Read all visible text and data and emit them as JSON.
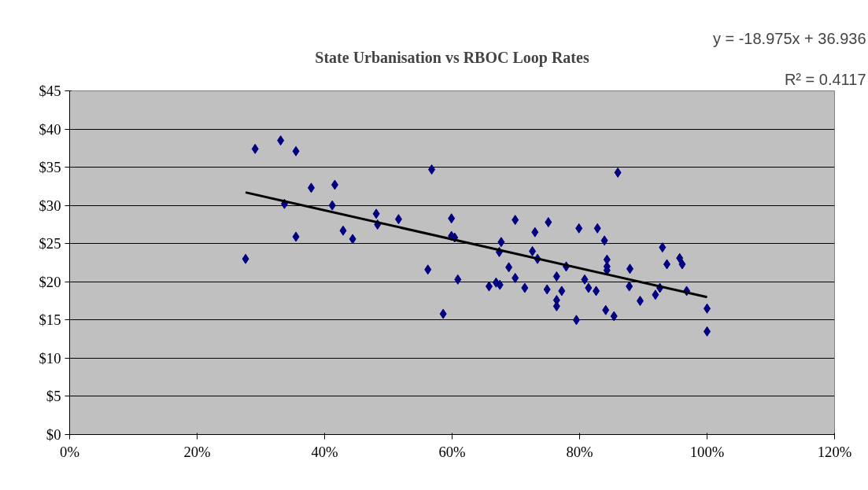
{
  "chart_data": {
    "type": "scatter",
    "title": "State Urbanisation vs RBOC Loop Rates",
    "annotations": [
      "y = -18.975x + 36.936",
      "R² = 0.4117"
    ],
    "xlim": [
      0,
      120
    ],
    "ylim": [
      0,
      45
    ],
    "xticks": [
      {
        "value": 0,
        "label": "0%"
      },
      {
        "value": 20,
        "label": "20%"
      },
      {
        "value": 40,
        "label": "40%"
      },
      {
        "value": 60,
        "label": "60%"
      },
      {
        "value": 80,
        "label": "80%"
      },
      {
        "value": 100,
        "label": "100%"
      },
      {
        "value": 120,
        "label": "120%"
      }
    ],
    "yticks": [
      {
        "value": 0,
        "label": "$0"
      },
      {
        "value": 5,
        "label": "$5"
      },
      {
        "value": 10,
        "label": "$10"
      },
      {
        "value": 15,
        "label": "$15"
      },
      {
        "value": 20,
        "label": "$20"
      },
      {
        "value": 25,
        "label": "$25"
      },
      {
        "value": 30,
        "label": "$30"
      },
      {
        "value": 35,
        "label": "$35"
      },
      {
        "value": 40,
        "label": "$40"
      },
      {
        "value": 45,
        "label": "$45"
      }
    ],
    "grid": "y",
    "marker": "diamond",
    "series": [
      {
        "color": "#000080",
        "x": [
          27.6,
          29.1,
          33.1,
          35.5,
          37.9,
          41.6,
          33.7,
          41.2,
          35.5,
          42.9,
          44.4,
          48.1,
          48.3,
          51.6,
          56.8,
          56.2,
          58.6,
          59.9,
          59.9,
          60.4,
          60.9,
          65.8,
          66.9,
          67.5,
          67.7,
          67.4,
          68.9,
          69.9,
          69.9,
          71.4,
          72.6,
          73.4,
          73.0,
          75.1,
          74.9,
          76.4,
          77.2,
          76.4,
          76.4,
          77.9,
          79.9,
          79.5,
          80.8,
          81.4,
          82.6,
          82.8,
          83.9,
          84.3,
          84.3,
          84.3,
          84.1,
          85.4,
          86.0,
          87.8,
          87.9,
          89.5,
          91.9,
          92.6,
          93.0,
          93.7,
          95.7,
          96.1,
          96.8,
          100,
          100
        ],
        "values": [
          23.0,
          37.4,
          38.5,
          37.1,
          32.3,
          32.7,
          30.2,
          30.0,
          25.9,
          26.7,
          25.6,
          28.9,
          27.5,
          28.2,
          34.7,
          21.6,
          15.8,
          28.3,
          26.0,
          25.8,
          20.3,
          19.4,
          19.9,
          19.6,
          25.2,
          23.9,
          21.9,
          28.1,
          20.5,
          19.2,
          24.0,
          23.0,
          26.5,
          27.8,
          19.0,
          20.7,
          18.8,
          17.6,
          16.8,
          22.0,
          27.0,
          15.0,
          20.3,
          19.2,
          18.8,
          27.0,
          25.4,
          22.9,
          22.0,
          21.5,
          16.3,
          15.5,
          34.3,
          19.4,
          21.7,
          17.5,
          18.3,
          19.2,
          24.5,
          22.3,
          23.1,
          22.3,
          18.8,
          16.5,
          13.5
        ]
      },
      {
        "type": "line",
        "marker": "none",
        "color": "#000000",
        "x": [
          27.6,
          100
        ],
        "values": [
          31.7,
          18.0
        ]
      }
    ]
  }
}
